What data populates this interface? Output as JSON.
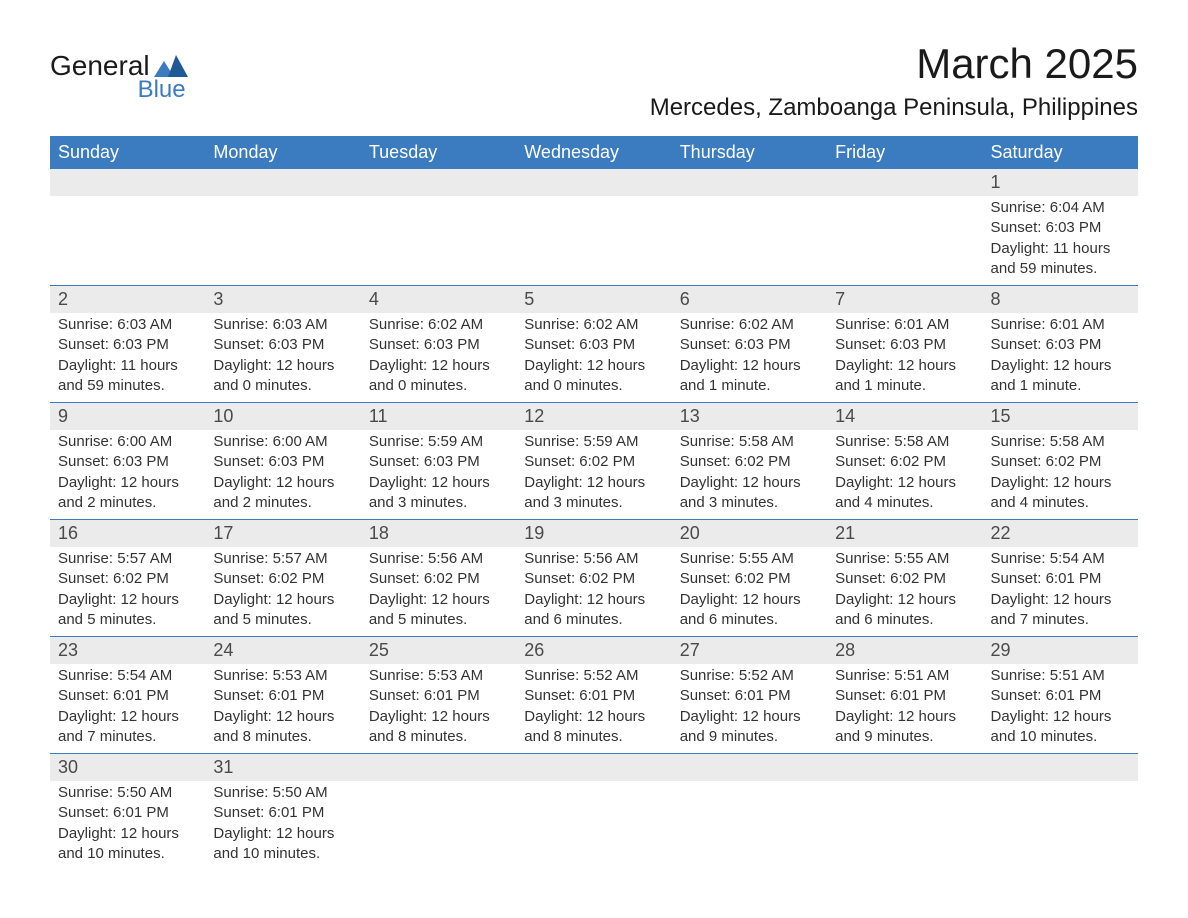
{
  "brand": {
    "line1": "General",
    "line2": "Blue"
  },
  "title": "March 2025",
  "location": "Mercedes, Zamboanga Peninsula, Philippines",
  "colors": {
    "header_bg": "#3b7bbf",
    "header_text": "#ffffff",
    "daynum_bg": "#ebebeb",
    "daynum_text": "#4a4a4a",
    "body_text": "#333333",
    "rule": "#3b7bbf",
    "page_bg": "#ffffff",
    "brand_accent": "#3b7bbf"
  },
  "typography": {
    "title_fontsize": 42,
    "location_fontsize": 24,
    "dayhead_fontsize": 18,
    "daynum_fontsize": 18,
    "info_fontsize": 15,
    "font_family": "Arial"
  },
  "layout": {
    "columns": 7,
    "rows": 6
  },
  "day_headers": [
    "Sunday",
    "Monday",
    "Tuesday",
    "Wednesday",
    "Thursday",
    "Friday",
    "Saturday"
  ],
  "weeks": [
    [
      null,
      null,
      null,
      null,
      null,
      null,
      {
        "n": "1",
        "sunrise": "Sunrise: 6:04 AM",
        "sunset": "Sunset: 6:03 PM",
        "daylight": "Daylight: 11 hours and 59 minutes."
      }
    ],
    [
      {
        "n": "2",
        "sunrise": "Sunrise: 6:03 AM",
        "sunset": "Sunset: 6:03 PM",
        "daylight": "Daylight: 11 hours and 59 minutes."
      },
      {
        "n": "3",
        "sunrise": "Sunrise: 6:03 AM",
        "sunset": "Sunset: 6:03 PM",
        "daylight": "Daylight: 12 hours and 0 minutes."
      },
      {
        "n": "4",
        "sunrise": "Sunrise: 6:02 AM",
        "sunset": "Sunset: 6:03 PM",
        "daylight": "Daylight: 12 hours and 0 minutes."
      },
      {
        "n": "5",
        "sunrise": "Sunrise: 6:02 AM",
        "sunset": "Sunset: 6:03 PM",
        "daylight": "Daylight: 12 hours and 0 minutes."
      },
      {
        "n": "6",
        "sunrise": "Sunrise: 6:02 AM",
        "sunset": "Sunset: 6:03 PM",
        "daylight": "Daylight: 12 hours and 1 minute."
      },
      {
        "n": "7",
        "sunrise": "Sunrise: 6:01 AM",
        "sunset": "Sunset: 6:03 PM",
        "daylight": "Daylight: 12 hours and 1 minute."
      },
      {
        "n": "8",
        "sunrise": "Sunrise: 6:01 AM",
        "sunset": "Sunset: 6:03 PM",
        "daylight": "Daylight: 12 hours and 1 minute."
      }
    ],
    [
      {
        "n": "9",
        "sunrise": "Sunrise: 6:00 AM",
        "sunset": "Sunset: 6:03 PM",
        "daylight": "Daylight: 12 hours and 2 minutes."
      },
      {
        "n": "10",
        "sunrise": "Sunrise: 6:00 AM",
        "sunset": "Sunset: 6:03 PM",
        "daylight": "Daylight: 12 hours and 2 minutes."
      },
      {
        "n": "11",
        "sunrise": "Sunrise: 5:59 AM",
        "sunset": "Sunset: 6:03 PM",
        "daylight": "Daylight: 12 hours and 3 minutes."
      },
      {
        "n": "12",
        "sunrise": "Sunrise: 5:59 AM",
        "sunset": "Sunset: 6:02 PM",
        "daylight": "Daylight: 12 hours and 3 minutes."
      },
      {
        "n": "13",
        "sunrise": "Sunrise: 5:58 AM",
        "sunset": "Sunset: 6:02 PM",
        "daylight": "Daylight: 12 hours and 3 minutes."
      },
      {
        "n": "14",
        "sunrise": "Sunrise: 5:58 AM",
        "sunset": "Sunset: 6:02 PM",
        "daylight": "Daylight: 12 hours and 4 minutes."
      },
      {
        "n": "15",
        "sunrise": "Sunrise: 5:58 AM",
        "sunset": "Sunset: 6:02 PM",
        "daylight": "Daylight: 12 hours and 4 minutes."
      }
    ],
    [
      {
        "n": "16",
        "sunrise": "Sunrise: 5:57 AM",
        "sunset": "Sunset: 6:02 PM",
        "daylight": "Daylight: 12 hours and 5 minutes."
      },
      {
        "n": "17",
        "sunrise": "Sunrise: 5:57 AM",
        "sunset": "Sunset: 6:02 PM",
        "daylight": "Daylight: 12 hours and 5 minutes."
      },
      {
        "n": "18",
        "sunrise": "Sunrise: 5:56 AM",
        "sunset": "Sunset: 6:02 PM",
        "daylight": "Daylight: 12 hours and 5 minutes."
      },
      {
        "n": "19",
        "sunrise": "Sunrise: 5:56 AM",
        "sunset": "Sunset: 6:02 PM",
        "daylight": "Daylight: 12 hours and 6 minutes."
      },
      {
        "n": "20",
        "sunrise": "Sunrise: 5:55 AM",
        "sunset": "Sunset: 6:02 PM",
        "daylight": "Daylight: 12 hours and 6 minutes."
      },
      {
        "n": "21",
        "sunrise": "Sunrise: 5:55 AM",
        "sunset": "Sunset: 6:02 PM",
        "daylight": "Daylight: 12 hours and 6 minutes."
      },
      {
        "n": "22",
        "sunrise": "Sunrise: 5:54 AM",
        "sunset": "Sunset: 6:01 PM",
        "daylight": "Daylight: 12 hours and 7 minutes."
      }
    ],
    [
      {
        "n": "23",
        "sunrise": "Sunrise: 5:54 AM",
        "sunset": "Sunset: 6:01 PM",
        "daylight": "Daylight: 12 hours and 7 minutes."
      },
      {
        "n": "24",
        "sunrise": "Sunrise: 5:53 AM",
        "sunset": "Sunset: 6:01 PM",
        "daylight": "Daylight: 12 hours and 8 minutes."
      },
      {
        "n": "25",
        "sunrise": "Sunrise: 5:53 AM",
        "sunset": "Sunset: 6:01 PM",
        "daylight": "Daylight: 12 hours and 8 minutes."
      },
      {
        "n": "26",
        "sunrise": "Sunrise: 5:52 AM",
        "sunset": "Sunset: 6:01 PM",
        "daylight": "Daylight: 12 hours and 8 minutes."
      },
      {
        "n": "27",
        "sunrise": "Sunrise: 5:52 AM",
        "sunset": "Sunset: 6:01 PM",
        "daylight": "Daylight: 12 hours and 9 minutes."
      },
      {
        "n": "28",
        "sunrise": "Sunrise: 5:51 AM",
        "sunset": "Sunset: 6:01 PM",
        "daylight": "Daylight: 12 hours and 9 minutes."
      },
      {
        "n": "29",
        "sunrise": "Sunrise: 5:51 AM",
        "sunset": "Sunset: 6:01 PM",
        "daylight": "Daylight: 12 hours and 10 minutes."
      }
    ],
    [
      {
        "n": "30",
        "sunrise": "Sunrise: 5:50 AM",
        "sunset": "Sunset: 6:01 PM",
        "daylight": "Daylight: 12 hours and 10 minutes."
      },
      {
        "n": "31",
        "sunrise": "Sunrise: 5:50 AM",
        "sunset": "Sunset: 6:01 PM",
        "daylight": "Daylight: 12 hours and 10 minutes."
      },
      null,
      null,
      null,
      null,
      null
    ]
  ]
}
